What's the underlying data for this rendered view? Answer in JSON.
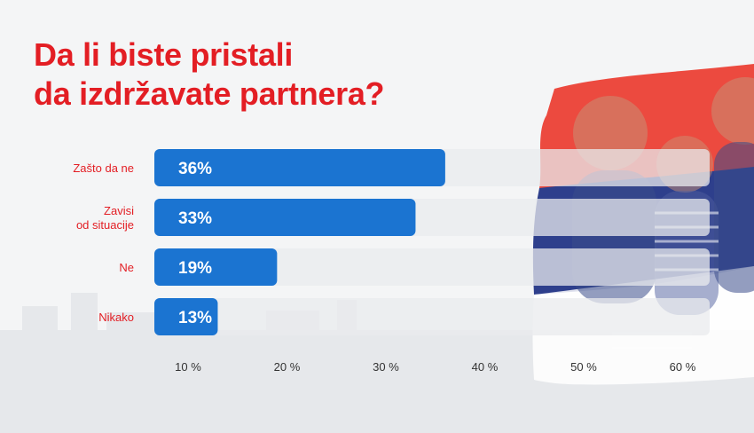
{
  "title": {
    "line1": "Da li biste pristali",
    "line2": "da izdržavate partnera?"
  },
  "colors": {
    "title": "#e31e24",
    "bar": "#1b74d1",
    "track": "#e9ebee",
    "flag_red": "#ec4a3f",
    "flag_blue": "#2e3f8c",
    "category_label": "#e31e24"
  },
  "chart_data": {
    "type": "bar",
    "orientation": "horizontal",
    "title": "Da li biste pristali da izdržavate partnera?",
    "categories": [
      [
        "Zašto da ne"
      ],
      [
        "Zavisi",
        "od situacije"
      ],
      [
        "Ne"
      ],
      [
        "Nikako"
      ]
    ],
    "values": [
      36,
      33,
      19,
      13
    ],
    "value_labels": [
      "36%",
      "33%",
      "19%",
      "13%"
    ],
    "x_ticks": [
      10,
      20,
      30,
      40,
      50,
      60
    ],
    "x_tick_labels": [
      "10 %",
      "20 %",
      "30 %",
      "40 %",
      "50 %",
      "60 %"
    ],
    "xlim": [
      5,
      60
    ],
    "xlabel": "",
    "ylabel": "",
    "grid": false,
    "legend": "none"
  }
}
